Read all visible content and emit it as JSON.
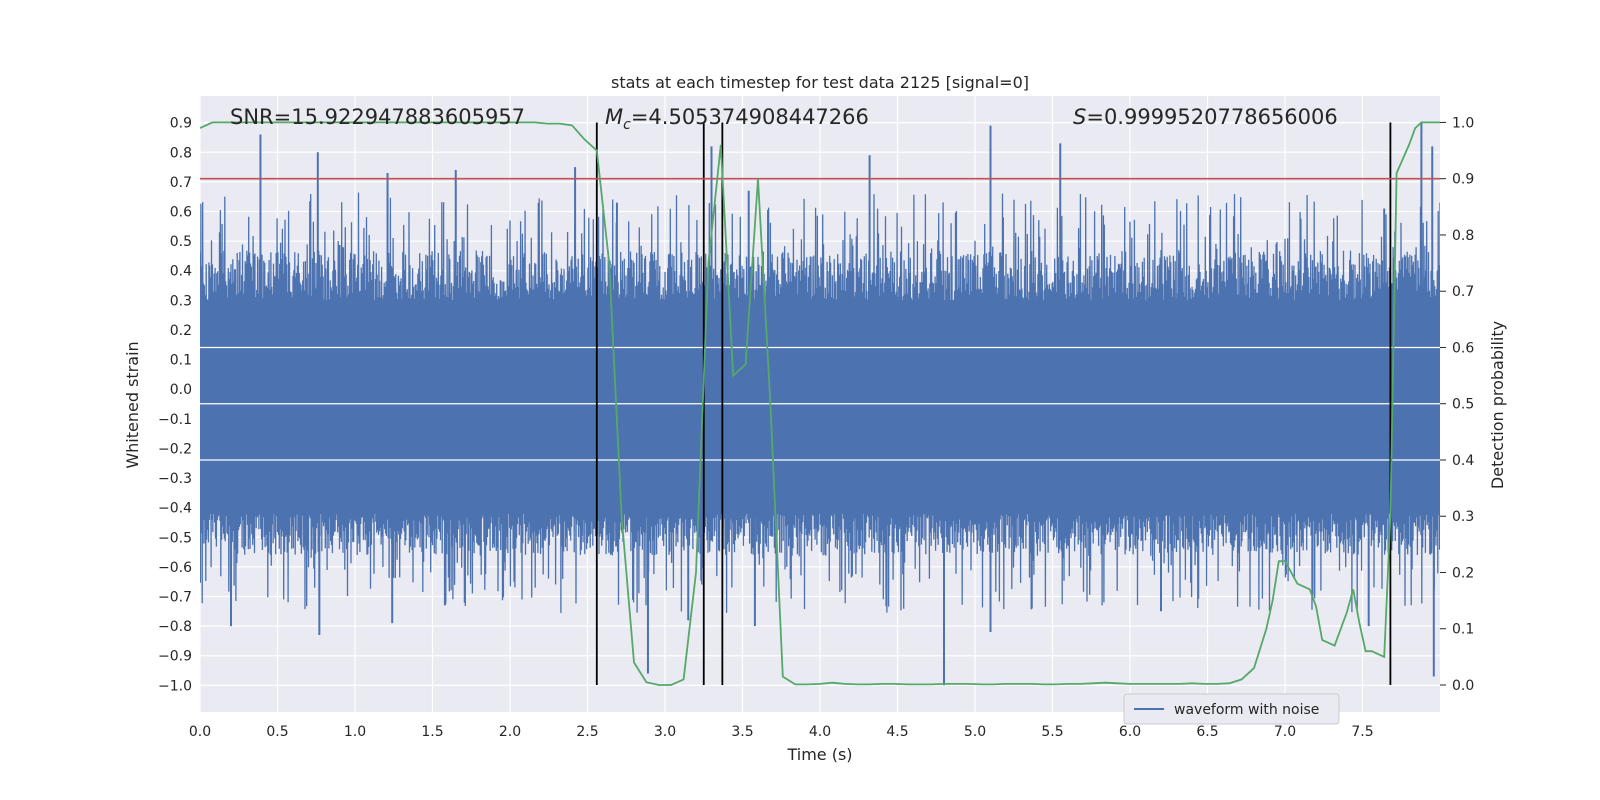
{
  "chart_data": {
    "type": "line",
    "title": "stats at each timestep for test data 2125 [signal=0]",
    "xlabel": "Time (s)",
    "ylabel_left": "Whitened strain",
    "ylabel_right": "Detection probability",
    "xlim": [
      0.0,
      8.0
    ],
    "ylim_left": [
      -1.09,
      0.99
    ],
    "ylim_right": [
      -0.048,
      1.047
    ],
    "x_ticks": [
      0.0,
      0.5,
      1.0,
      1.5,
      2.0,
      2.5,
      3.0,
      3.5,
      4.0,
      4.5,
      5.0,
      5.5,
      6.0,
      6.5,
      7.0,
      7.5
    ],
    "x_tick_labels": [
      "0.0",
      "0.5",
      "1.0",
      "1.5",
      "2.0",
      "2.5",
      "3.0",
      "3.5",
      "4.0",
      "4.5",
      "5.0",
      "5.5",
      "6.0",
      "6.5",
      "7.0",
      "7.5"
    ],
    "y_left_ticks": [
      0.9,
      0.8,
      0.7,
      0.6,
      0.5,
      0.4,
      0.3,
      0.2,
      0.1,
      0.0,
      -0.1,
      -0.2,
      -0.3,
      -0.4,
      -0.5,
      -0.6,
      -0.7,
      -0.8,
      -0.9,
      -1.0
    ],
    "y_left_tick_labels": [
      "0.9",
      "0.8",
      "0.7",
      "0.6",
      "0.5",
      "0.4",
      "0.3",
      "0.2",
      "0.1",
      "0.0",
      "−0.1",
      "−0.2",
      "−0.3",
      "−0.4",
      "−0.5",
      "−0.6",
      "−0.7",
      "−0.8",
      "−0.9",
      "−1.0"
    ],
    "y_right_ticks": [
      1.0,
      0.9,
      0.8,
      0.7,
      0.6,
      0.5,
      0.4,
      0.3,
      0.2,
      0.1,
      0.0
    ],
    "y_right_tick_labels": [
      "1.0",
      "0.9",
      "0.8",
      "0.7",
      "0.6",
      "0.5",
      "0.4",
      "0.3",
      "0.2",
      "0.1",
      "0.0"
    ],
    "annotations": {
      "snr": "SNR=15.922947883605957",
      "mc_symbol": "M",
      "mc_subscript": "c",
      "mc_value": "=4.505374908447266",
      "s_symbol": "S",
      "s_value": "=0.9999520778656006"
    },
    "threshold": {
      "value": 0.9,
      "axis": "right",
      "color": "#c44e52"
    },
    "vertical_lines": [
      2.56,
      3.25,
      3.37,
      7.68
    ],
    "waveform": {
      "name": "waveform with noise",
      "color": "#4c72b0",
      "duration_s": 8.0,
      "typical_upper": 0.3,
      "typical_lower": -0.42,
      "peaks": [
        {
          "x": 0.39,
          "y": 0.86
        },
        {
          "x": 0.76,
          "y": 0.8
        },
        {
          "x": 1.21,
          "y": 0.73
        },
        {
          "x": 1.65,
          "y": 0.74
        },
        {
          "x": 2.42,
          "y": 0.75
        },
        {
          "x": 2.69,
          "y": 0.63
        },
        {
          "x": 3.3,
          "y": 0.82
        },
        {
          "x": 3.54,
          "y": 0.67
        },
        {
          "x": 4.32,
          "y": 0.79
        },
        {
          "x": 5.1,
          "y": 0.89
        },
        {
          "x": 5.55,
          "y": 0.83
        },
        {
          "x": 7.64,
          "y": 0.61
        },
        {
          "x": 7.88,
          "y": 0.9
        },
        {
          "x": 7.95,
          "y": 0.82
        }
      ],
      "troughs": [
        {
          "x": 0.2,
          "y": -0.8
        },
        {
          "x": 0.77,
          "y": -0.83
        },
        {
          "x": 1.24,
          "y": -0.79
        },
        {
          "x": 1.58,
          "y": -0.73
        },
        {
          "x": 2.89,
          "y": -0.96
        },
        {
          "x": 3.15,
          "y": -0.78
        },
        {
          "x": 3.58,
          "y": -0.8
        },
        {
          "x": 4.8,
          "y": -1.0
        },
        {
          "x": 5.1,
          "y": -0.82
        },
        {
          "x": 6.2,
          "y": -0.75
        },
        {
          "x": 7.54,
          "y": -0.8
        },
        {
          "x": 7.96,
          "y": -0.97
        }
      ]
    },
    "probability": {
      "color": "#55a868",
      "x": [
        0.0,
        0.08,
        0.16,
        0.24,
        0.32,
        0.4,
        0.48,
        0.56,
        0.64,
        0.72,
        0.8,
        0.88,
        0.96,
        1.04,
        1.12,
        1.2,
        1.28,
        1.36,
        1.44,
        1.52,
        1.6,
        1.68,
        1.76,
        1.84,
        1.92,
        2.0,
        2.08,
        2.16,
        2.24,
        2.32,
        2.4,
        2.48,
        2.56,
        2.64,
        2.72,
        2.8,
        2.88,
        2.96,
        3.04,
        3.12,
        3.2,
        3.28,
        3.36,
        3.44,
        3.52,
        3.6,
        3.68,
        3.76,
        3.84,
        3.92,
        4.0,
        4.08,
        4.16,
        4.24,
        4.32,
        4.4,
        4.48,
        4.56,
        4.64,
        4.72,
        4.8,
        4.88,
        4.96,
        5.04,
        5.12,
        5.2,
        5.28,
        5.36,
        5.44,
        5.52,
        5.6,
        5.68,
        5.76,
        5.84,
        5.92,
        6.0,
        6.08,
        6.16,
        6.24,
        6.32,
        6.4,
        6.48,
        6.56,
        6.64,
        6.72,
        6.8,
        6.88,
        6.92,
        6.96,
        7.0,
        7.08,
        7.16,
        7.2,
        7.24,
        7.28,
        7.32,
        7.4,
        7.44,
        7.48,
        7.52,
        7.56,
        7.64,
        7.68,
        7.72,
        7.8,
        7.84,
        7.88,
        7.92,
        8.0
      ],
      "y": [
        0.99,
        1.0,
        1.0,
        1.0,
        1.0,
        1.0,
        1.0,
        1.0,
        1.0,
        1.0,
        1.0,
        1.0,
        1.0,
        1.0,
        1.0,
        1.0,
        1.0,
        1.0,
        1.0,
        1.0,
        1.0,
        1.0,
        1.0,
        1.0,
        1.0,
        1.0,
        1.0,
        1.0,
        0.998,
        0.998,
        0.995,
        0.97,
        0.95,
        0.75,
        0.3,
        0.04,
        0.005,
        0.0,
        0.0,
        0.01,
        0.2,
        0.75,
        0.96,
        0.55,
        0.57,
        0.9,
        0.5,
        0.015,
        0.001,
        0.001,
        0.002,
        0.004,
        0.002,
        0.001,
        0.001,
        0.002,
        0.002,
        0.001,
        0.001,
        0.001,
        0.002,
        0.002,
        0.002,
        0.001,
        0.001,
        0.002,
        0.002,
        0.002,
        0.001,
        0.001,
        0.002,
        0.002,
        0.003,
        0.004,
        0.003,
        0.002,
        0.002,
        0.002,
        0.002,
        0.002,
        0.003,
        0.002,
        0.002,
        0.003,
        0.01,
        0.03,
        0.1,
        0.15,
        0.22,
        0.22,
        0.18,
        0.17,
        0.14,
        0.08,
        0.075,
        0.07,
        0.13,
        0.17,
        0.11,
        0.06,
        0.06,
        0.05,
        0.3,
        0.91,
        0.96,
        0.99,
        1.0,
        1.0,
        1.0
      ]
    },
    "legend": {
      "position": "lower-right",
      "entries": [
        "waveform with noise"
      ]
    }
  }
}
